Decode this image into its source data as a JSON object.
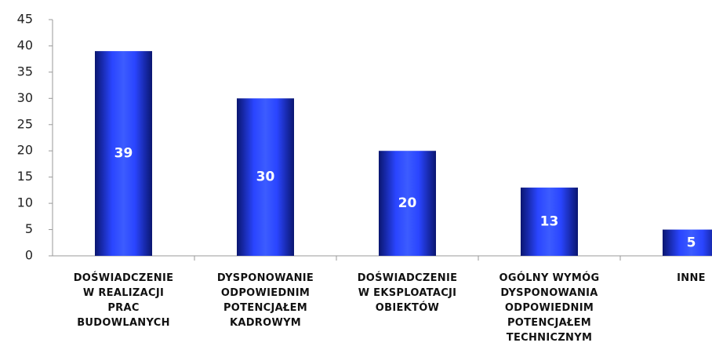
{
  "chart_data": {
    "type": "bar",
    "categories": [
      "DOŚWIADCZENIE\nW REALIZACJI\nPRAC\nBUDOWLANYCH",
      "DYSPONOWANIE\nODPOWIEDNIM\nPOTENCJAŁEM\nKADROWYM",
      "DOŚWIADCZENIE\nW EKSPLOATACJI\nOBIEKTÓW",
      "OGÓLNY WYMÓG\nDYSPONOWANIA\nODPOWIEDNIM\nPOTENCJAŁEM\nTECHNICZNYM",
      "INNE"
    ],
    "values": [
      39,
      30,
      20,
      13,
      5
    ],
    "color": "#1a2fd0",
    "ylim": [
      0,
      45
    ],
    "yticks": [
      0,
      5,
      10,
      15,
      20,
      25,
      30,
      35,
      40,
      45
    ],
    "grid": false
  }
}
